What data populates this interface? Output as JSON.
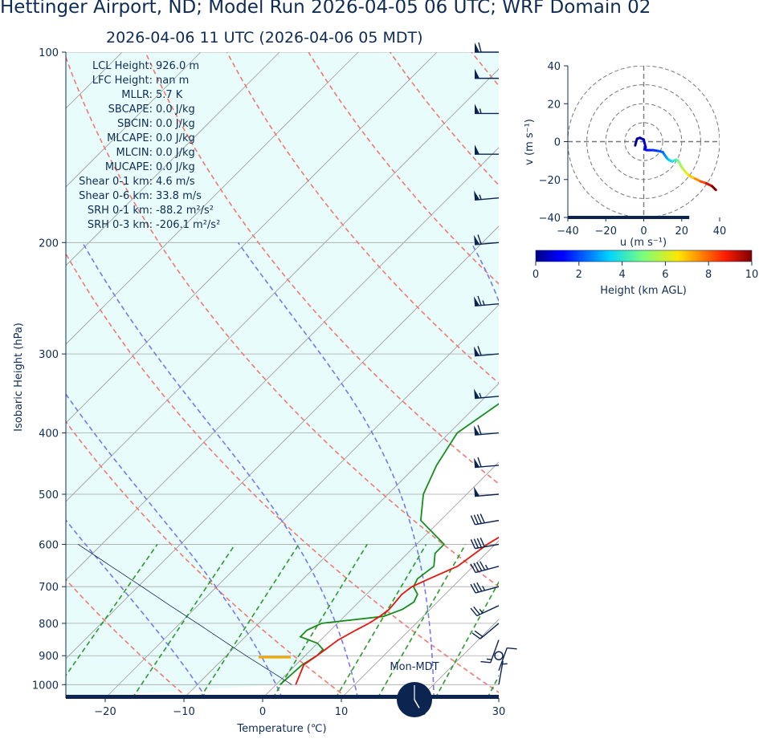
{
  "header": {
    "title": "Hettinger Airport, ND; Model Run 2026-04-05 06 UTC; WRF Domain 02",
    "subtitle": "2026-04-06 11 UTC  (2026-04-06 05 MDT)"
  },
  "chart_data": [
    {
      "type": "line",
      "name": "skew-t",
      "xlabel": "Temperature (℃)",
      "ylabel": "Isobaric Height (hPa)",
      "xlim": [
        -25,
        30
      ],
      "ylim": [
        1050,
        100
      ],
      "y_scale": "log",
      "skew_deg": 45,
      "x_ticks": [
        -20,
        -10,
        0,
        10,
        20,
        30
      ],
      "x_tick_labels": [
        "−20",
        "−10",
        "0",
        "10",
        "20",
        "30"
      ],
      "y_ticks": [
        100,
        200,
        300,
        400,
        500,
        600,
        700,
        800,
        900,
        1000
      ],
      "grid": true,
      "stats": [
        {
          "label": "LCL Height:",
          "value": "926.0 m"
        },
        {
          "label": "LFC Height:",
          "value": "nan m"
        },
        {
          "label": "MLLR:",
          "value": "5.7 K"
        },
        {
          "label": "SBCAPE:",
          "value": "0.0 J/kg"
        },
        {
          "label": "SBCIN:",
          "value": "0.0 J/kg"
        },
        {
          "label": "MLCAPE:",
          "value": "0.0 J/kg"
        },
        {
          "label": "MLCIN:",
          "value": "0.0 J/kg"
        },
        {
          "label": "MUCAPE:",
          "value": "0.0 J/kg"
        },
        {
          "label": "Shear 0-1 km:",
          "value": "4.6 m/s"
        },
        {
          "label": "Shear 0-6 km:",
          "value": "33.8 m/s"
        },
        {
          "label": "SRH 0-1 km:",
          "value": "-88.2 m²/s²"
        },
        {
          "label": "SRH 0-3 km:",
          "value": "-206.1 m²/s²"
        }
      ],
      "series": [
        {
          "name": "",
          "role": "temperature",
          "color": "#e8150c",
          "p": [
            1000,
            930,
            900,
            880,
            850,
            820,
            800,
            780,
            760,
            720,
            700,
            680,
            650,
            600,
            550,
            500,
            450,
            400,
            350,
            300,
            250,
            220,
            200,
            180,
            160,
            140,
            125,
            110,
            100
          ],
          "t": [
            2.5,
            1.0,
            1.5,
            1.8,
            2.2,
            3.2,
            4.0,
            4.5,
            4.8,
            4.5,
            4.8,
            6.0,
            8.0,
            9.0,
            11.0,
            14.0,
            17.0,
            21.0,
            25.5,
            30.0,
            33.0,
            35.0,
            38.5,
            44.0,
            51.0,
            60.0,
            70.5,
            78.0,
            82.0
          ]
        },
        {
          "name": "",
          "role": "dewpoint",
          "color": "#1a8c1f",
          "p": [
            1000,
            930,
            900,
            880,
            860,
            840,
            820,
            800,
            780,
            760,
            740,
            720,
            700,
            680,
            650,
            620,
            600,
            550,
            500,
            450,
            400,
            350,
            300,
            250,
            220,
            200,
            180,
            160,
            140,
            120,
            100
          ],
          "t": [
            0.5,
            0.8,
            1.5,
            1.5,
            0.0,
            -3.0,
            -3.0,
            -2.0,
            5.0,
            6.5,
            7.0,
            6.5,
            5.0,
            4.5,
            5.0,
            3.5,
            3.5,
            -2.5,
            -5.5,
            -7.5,
            -9.0,
            -7.0,
            -5.0,
            -5.0,
            -6.5,
            -4.0,
            -1.5,
            7.0,
            15.0,
            23.0,
            33.0
          ]
        },
        {
          "name": "",
          "role": "parcel",
          "color": "#0b2450",
          "p": [
            1000,
            900,
            850,
            800,
            750,
            700,
            650,
            600
          ],
          "t": [
            2.0,
            -7.5,
            -12.5,
            -17.8,
            -23.5,
            -29.5,
            -36.0,
            -43.0
          ]
        }
      ],
      "lcl_pressure": 905,
      "dry_adiabats_theta_K": [
        260,
        280,
        300,
        320,
        340,
        360,
        380,
        400,
        420,
        440,
        460,
        480
      ],
      "moist_adiabats_theta_C": [
        -10,
        0,
        10,
        20,
        30
      ],
      "mixing_ratio_lines_gkg": [
        0.4,
        1,
        2,
        4,
        7,
        10,
        16,
        24,
        32
      ],
      "wind_barbs": [
        {
          "p": 1000,
          "speed_kt": 5,
          "dir_deg": 10
        },
        {
          "p": 950,
          "speed_kt": 10,
          "dir_deg": 20
        },
        {
          "p": 900,
          "speed_kt": 0,
          "dir_deg": 0
        },
        {
          "p": 850,
          "speed_kt": 15,
          "dir_deg": 200
        },
        {
          "p": 800,
          "speed_kt": 20,
          "dir_deg": 230
        },
        {
          "p": 750,
          "speed_kt": 25,
          "dir_deg": 245
        },
        {
          "p": 700,
          "speed_kt": 35,
          "dir_deg": 255
        },
        {
          "p": 650,
          "speed_kt": 45,
          "dir_deg": 255
        },
        {
          "p": 600,
          "speed_kt": 40,
          "dir_deg": 260
        },
        {
          "p": 550,
          "speed_kt": 40,
          "dir_deg": 260
        },
        {
          "p": 500,
          "speed_kt": 50,
          "dir_deg": 265
        },
        {
          "p": 450,
          "speed_kt": 60,
          "dir_deg": 265
        },
        {
          "p": 400,
          "speed_kt": 60,
          "dir_deg": 265
        },
        {
          "p": 350,
          "speed_kt": 55,
          "dir_deg": 265
        },
        {
          "p": 300,
          "speed_kt": 60,
          "dir_deg": 265
        },
        {
          "p": 250,
          "speed_kt": 65,
          "dir_deg": 265
        },
        {
          "p": 200,
          "speed_kt": 60,
          "dir_deg": 265
        },
        {
          "p": 170,
          "speed_kt": 55,
          "dir_deg": 265
        },
        {
          "p": 145,
          "speed_kt": 50,
          "dir_deg": 270
        },
        {
          "p": 125,
          "speed_kt": 55,
          "dir_deg": 270
        },
        {
          "p": 110,
          "speed_kt": 50,
          "dir_deg": 270
        },
        {
          "p": 100,
          "speed_kt": 60,
          "dir_deg": 270
        }
      ],
      "clock": {
        "label": "Mon-MDT",
        "time": "05:00"
      }
    },
    {
      "type": "line",
      "name": "hodograph",
      "xlabel": "u (m s⁻¹)",
      "ylabel": "v (m s⁻¹)",
      "xlim": [
        -40,
        40
      ],
      "ylim": [
        -40,
        40
      ],
      "x_ticks": [
        -40,
        -20,
        0,
        20,
        40
      ],
      "y_ticks": [
        -40,
        -20,
        0,
        20,
        40
      ],
      "x_tick_labels": [
        "−40",
        "−20",
        "0",
        "20",
        "40"
      ],
      "y_tick_labels": [
        "−40",
        "−20",
        "0",
        "20",
        "40"
      ],
      "rings": [
        10,
        20,
        30,
        40
      ],
      "u": [
        -4.5,
        -4.0,
        -3.5,
        -2.0,
        -1.0,
        0.0,
        0.5,
        1.0,
        0.5,
        1.5,
        3.0,
        5.0,
        8.0,
        10.0,
        11.0,
        12.0,
        13.0,
        14.0,
        15.0,
        16.0,
        17.0,
        18.0,
        19.0,
        20.0,
        22.0,
        24.0,
        27.0,
        30.0,
        33.0,
        36.0,
        38.0
      ],
      "v": [
        -2.0,
        0.0,
        1.5,
        2.0,
        1.5,
        1.0,
        -1.0,
        -3.0,
        -4.0,
        -4.5,
        -4.5,
        -4.5,
        -5.0,
        -5.5,
        -7.0,
        -8.5,
        -9.5,
        -10.0,
        -10.5,
        -10.0,
        -9.5,
        -10.0,
        -11.5,
        -13.5,
        -16.0,
        -18.0,
        -19.5,
        -21.0,
        -22.0,
        -23.5,
        -25.5
      ],
      "height_km": [
        0.0,
        0.1,
        0.2,
        0.3,
        0.4,
        0.5,
        0.6,
        0.7,
        0.8,
        1.0,
        1.2,
        1.4,
        1.7,
        2.0,
        2.3,
        2.6,
        2.9,
        3.2,
        3.5,
        3.8,
        4.1,
        4.5,
        4.9,
        5.3,
        5.8,
        6.3,
        6.9,
        7.6,
        8.3,
        9.2,
        10.0
      ]
    },
    {
      "type": "heatmap",
      "name": "colorbar",
      "xlabel": "Height (km AGL)",
      "xlim": [
        0,
        10
      ],
      "x_ticks": [
        0,
        2,
        4,
        6,
        8,
        10
      ],
      "colormap": "jet"
    }
  ]
}
